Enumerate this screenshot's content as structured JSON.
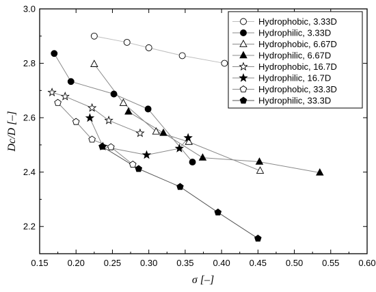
{
  "chart_data": {
    "type": "line",
    "title": "",
    "xlabel": "σ [–]",
    "ylabel": "Dc/D [–]",
    "xlim": [
      0.15,
      0.6
    ],
    "ylim": [
      2.1,
      3.0
    ],
    "x_ticks": [
      "0.15",
      "0.20",
      "0.25",
      "0.30",
      "0.35",
      "0.40",
      "0.45",
      "0.50",
      "0.55",
      "0.60"
    ],
    "y_ticks": [
      "2.2",
      "2.4",
      "2.6",
      "2.8",
      "3.0"
    ],
    "grid": false,
    "legend_position": "top-right",
    "series": [
      {
        "name": "Hydrophobic, 3.33D",
        "marker": "circle",
        "filled": false,
        "line_color": "#bdbdbd",
        "x": [
          0.225,
          0.27,
          0.3,
          0.346,
          0.404
        ],
        "y": [
          2.9,
          2.877,
          2.857,
          2.828,
          2.8
        ]
      },
      {
        "name": "Hydrophilic, 3.33D",
        "marker": "circle",
        "filled": true,
        "line_color": "#888888",
        "x": [
          0.17,
          0.193,
          0.252,
          0.299,
          0.36
        ],
        "y": [
          2.836,
          2.733,
          2.687,
          2.632,
          2.437
        ]
      },
      {
        "name": "Hydrophobic, 6.67D",
        "marker": "triangle",
        "filled": false,
        "line_color": "#888888",
        "x": [
          0.225,
          0.265,
          0.31,
          0.355,
          0.453
        ],
        "y": [
          2.797,
          2.654,
          2.549,
          2.511,
          2.405
        ]
      },
      {
        "name": "Hydrophilic, 6.67D",
        "marker": "triangle",
        "filled": true,
        "line_color": "#888888",
        "x": [
          0.272,
          0.32,
          0.374,
          0.452,
          0.535
        ],
        "y": [
          2.622,
          2.544,
          2.453,
          2.438,
          2.398
        ]
      },
      {
        "name": "Hydrophobic, 16.7D",
        "marker": "star",
        "filled": false,
        "line_color": "#888888",
        "x": [
          0.167,
          0.185,
          0.222,
          0.245,
          0.288
        ],
        "y": [
          2.693,
          2.678,
          2.636,
          2.59,
          2.543
        ]
      },
      {
        "name": "Hydrophilic, 16.7D",
        "marker": "star",
        "filled": true,
        "line_color": "#888888",
        "x": [
          0.219,
          0.237,
          0.297,
          0.342,
          0.354
        ],
        "y": [
          2.599,
          2.494,
          2.463,
          2.487,
          2.526
        ]
      },
      {
        "name": "Hydrophobic, 33.3D",
        "marker": "pentagon",
        "filled": false,
        "line_color": "#888888",
        "x": [
          0.175,
          0.2,
          0.222,
          0.248,
          0.278
        ],
        "y": [
          2.655,
          2.585,
          2.52,
          2.492,
          2.428
        ]
      },
      {
        "name": "Hydrophilic, 33.3D",
        "marker": "pentagon",
        "filled": true,
        "line_color": "#555555",
        "x": [
          0.236,
          0.286,
          0.343,
          0.395,
          0.45
        ],
        "y": [
          2.494,
          2.412,
          2.346,
          2.252,
          2.156
        ]
      }
    ]
  }
}
